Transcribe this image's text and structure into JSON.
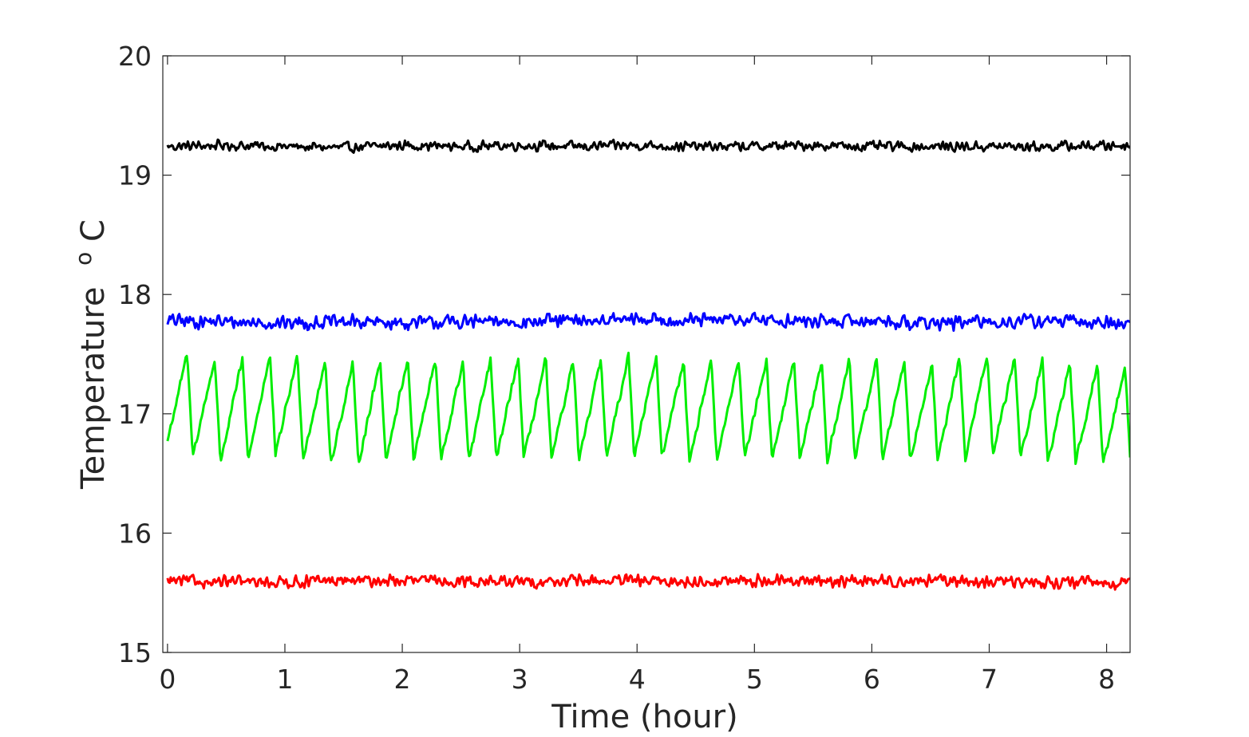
{
  "chart_data": {
    "type": "line",
    "title": "",
    "xlabel": "Time (hour)",
    "ylabel": "Temperature",
    "ylabel_unit_sup": "o",
    "ylabel_unit": "C",
    "xlim": [
      -0.04,
      8.2
    ],
    "ylim": [
      15,
      20
    ],
    "xticks": [
      0,
      1,
      2,
      3,
      4,
      5,
      6,
      7,
      8
    ],
    "yticks": [
      15,
      16,
      17,
      18,
      19,
      20
    ],
    "grid": false,
    "box": true,
    "legend": "none",
    "series": [
      {
        "color": "#000000",
        "x": [
          0.0,
          0.5,
          1.0,
          1.5,
          2.0,
          2.5,
          3.0,
          3.5,
          4.0,
          4.5,
          5.0,
          5.5,
          6.0,
          6.5,
          7.0,
          7.5,
          8.2
        ],
        "values": [
          19.24,
          19.25,
          19.24,
          19.23,
          19.25,
          19.24,
          19.25,
          19.24,
          19.25,
          19.24,
          19.24,
          19.25,
          19.24,
          19.24,
          19.24,
          19.24,
          19.25
        ],
        "noise_amplitude": 0.05
      },
      {
        "color": "#0000ff",
        "x": [
          0.0,
          0.5,
          1.0,
          1.5,
          2.0,
          2.5,
          3.0,
          3.5,
          4.0,
          4.5,
          5.0,
          5.5,
          6.0,
          6.5,
          7.0,
          7.5,
          8.2
        ],
        "values": [
          17.78,
          17.77,
          17.76,
          17.77,
          17.76,
          17.77,
          17.77,
          17.78,
          17.79,
          17.78,
          17.79,
          17.77,
          17.78,
          17.76,
          17.77,
          17.78,
          17.75
        ],
        "noise_amplitude": 0.07
      },
      {
        "color": "#00ee00",
        "x": [
          0.0,
          0.5,
          1.0,
          1.5,
          2.0,
          2.5,
          3.0,
          3.5,
          4.0,
          4.5,
          5.0,
          5.5,
          6.0,
          6.5,
          7.0,
          7.5,
          8.2
        ],
        "values": [
          17.3,
          17.0,
          17.2,
          16.9,
          17.1,
          17.0,
          17.1,
          17.0,
          17.2,
          17.0,
          17.1,
          17.0,
          17.1,
          17.0,
          17.2,
          17.0,
          16.85
        ],
        "oscillation": {
          "period_hours": 0.235,
          "peak": 17.45,
          "trough": 16.6
        },
        "noise_amplitude": 0.04
      },
      {
        "color": "#ff0000",
        "x": [
          0.0,
          0.5,
          1.0,
          1.5,
          2.0,
          2.5,
          3.0,
          3.5,
          4.0,
          4.5,
          5.0,
          5.5,
          6.0,
          6.5,
          7.0,
          7.5,
          8.2
        ],
        "values": [
          15.6,
          15.59,
          15.59,
          15.6,
          15.6,
          15.6,
          15.59,
          15.6,
          15.6,
          15.59,
          15.6,
          15.6,
          15.6,
          15.6,
          15.59,
          15.59,
          15.58
        ],
        "noise_amplitude": 0.06
      }
    ]
  }
}
